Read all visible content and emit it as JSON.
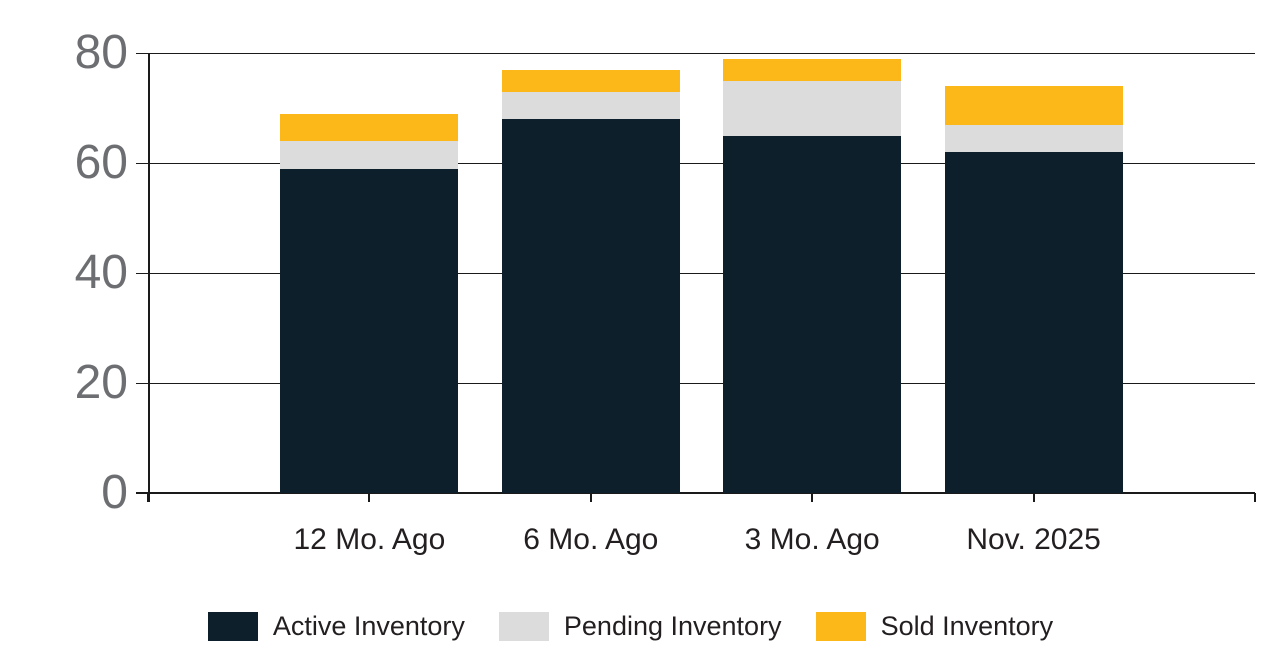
{
  "chart_data": {
    "type": "bar",
    "stacked": true,
    "title": "",
    "categories": [
      "12 Mo. Ago",
      "6 Mo. Ago",
      "3 Mo. Ago",
      "Nov. 2025"
    ],
    "series": [
      {
        "name": "Active Inventory",
        "color": "#0D1F2B",
        "values": [
          59,
          68,
          65,
          62
        ]
      },
      {
        "name": "Pending Inventory",
        "color": "#DCDCDC",
        "values": [
          5,
          5,
          10,
          5
        ]
      },
      {
        "name": "Sold Inventory",
        "color": "#FBB818",
        "values": [
          5,
          4,
          4,
          7
        ]
      }
    ],
    "ylim": [
      0,
      80
    ],
    "yticks": [
      0,
      20,
      40,
      60,
      80
    ],
    "grid": "horizontal",
    "legend_position": "bottom",
    "colors": {
      "background": "#FFFFFF",
      "gridline": "#1A1A1A",
      "ytick_label": "#6D6E71",
      "text": "#231F20"
    }
  }
}
